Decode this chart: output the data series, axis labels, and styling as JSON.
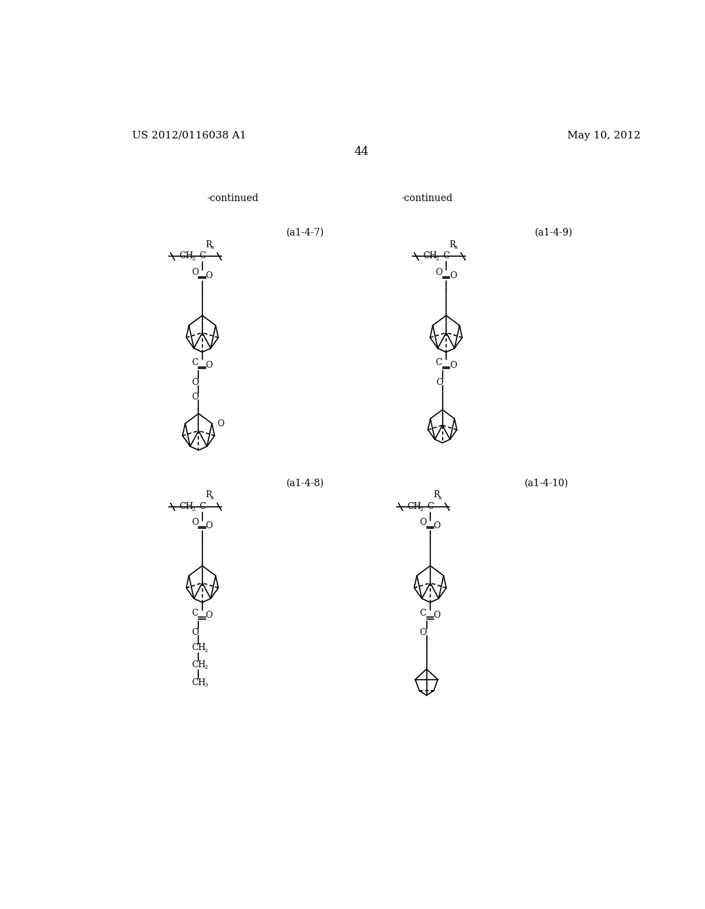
{
  "page_number": "44",
  "patent_number": "US 2012/0116038 A1",
  "patent_date": "May 10, 2012",
  "continued_left": "-continued",
  "continued_right": "-continued",
  "bg_color": "#ffffff",
  "text_color": "#000000",
  "labels": [
    "(a1-4-7)",
    "(a1-4-8)",
    "(a1-4-9)",
    "(a1-4-10)"
  ]
}
